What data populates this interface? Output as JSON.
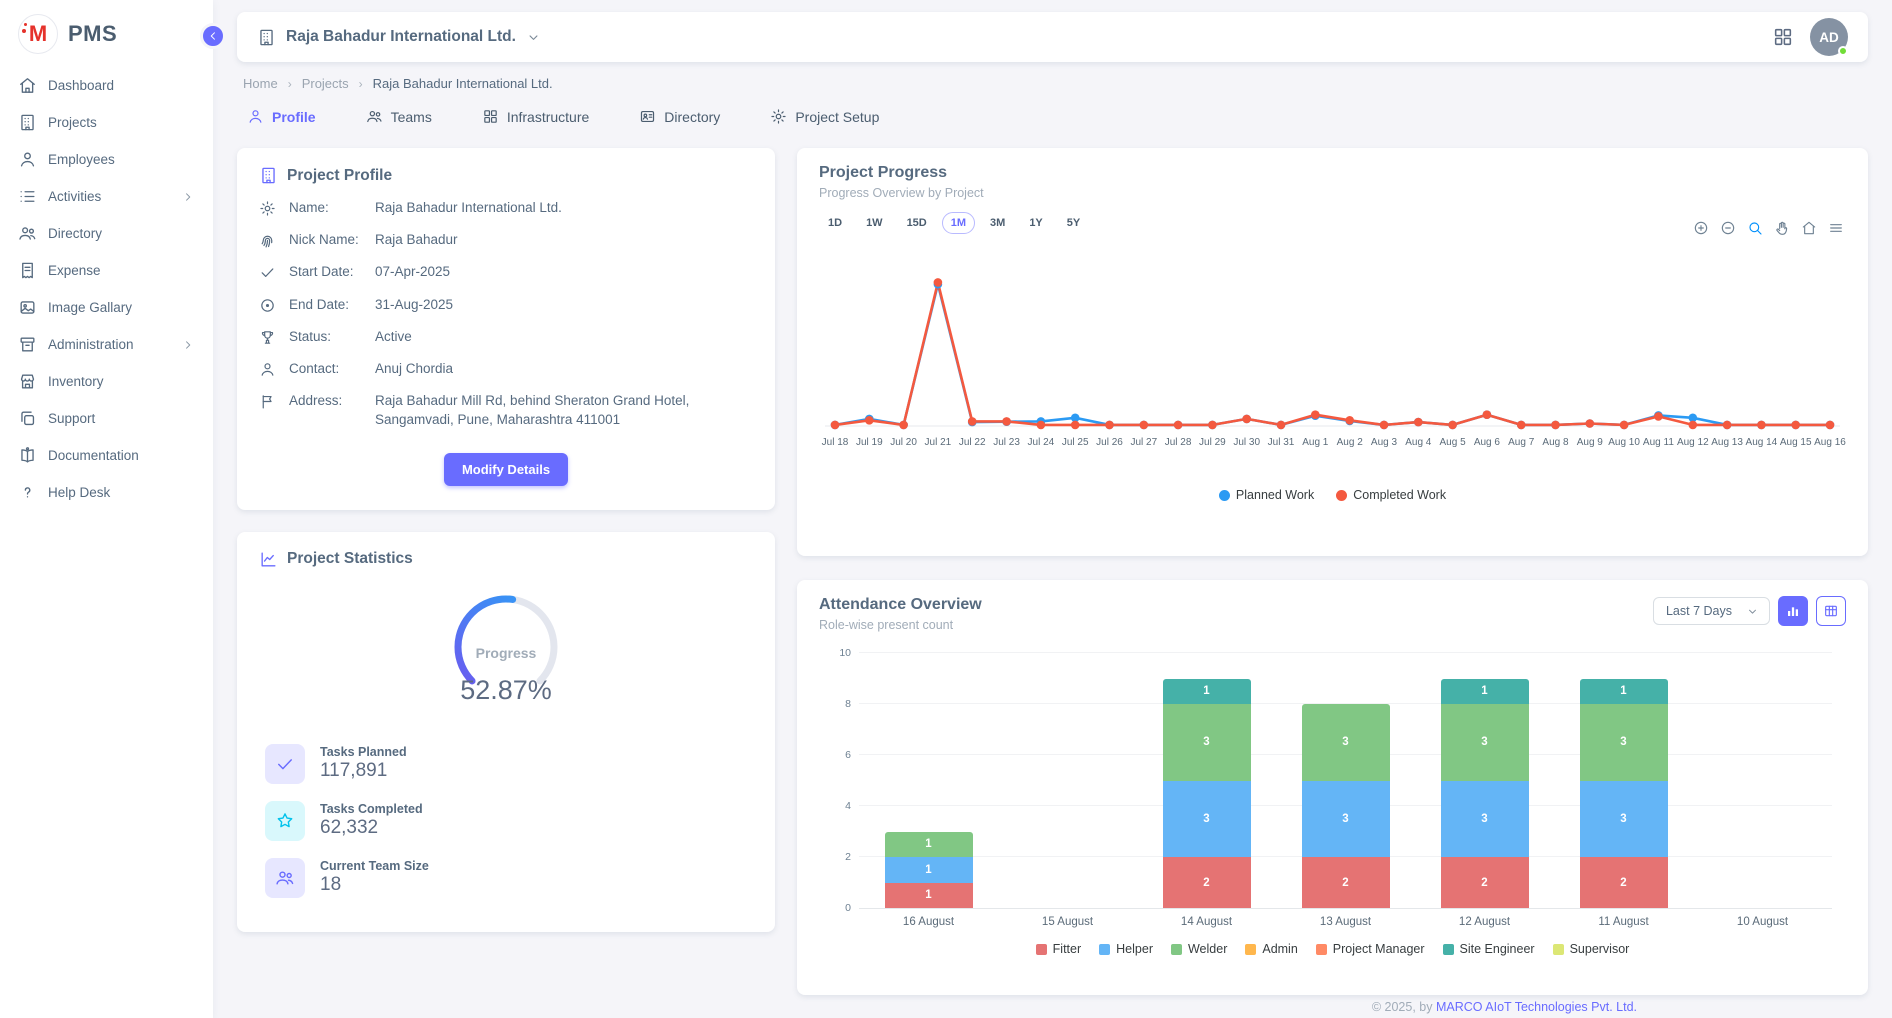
{
  "app": {
    "name": "PMS"
  },
  "sidebar": {
    "items": [
      {
        "label": "Dashboard",
        "icon": "home-icon",
        "has_children": false
      },
      {
        "label": "Projects",
        "icon": "building-icon",
        "has_children": false
      },
      {
        "label": "Employees",
        "icon": "person-icon",
        "has_children": false
      },
      {
        "label": "Activities",
        "icon": "list-icon",
        "has_children": true
      },
      {
        "label": "Directory",
        "icon": "people-icon",
        "has_children": false
      },
      {
        "label": "Expense",
        "icon": "receipt-icon",
        "has_children": false
      },
      {
        "label": "Image Gallary",
        "icon": "image-icon",
        "has_children": false
      },
      {
        "label": "Administration",
        "icon": "archive-icon",
        "has_children": true
      },
      {
        "label": "Inventory",
        "icon": "store-icon",
        "has_children": false
      },
      {
        "label": "Support",
        "icon": "copy-icon",
        "has_children": false
      },
      {
        "label": "Documentation",
        "icon": "book-icon",
        "has_children": false
      },
      {
        "label": "Help Desk",
        "icon": "help-icon",
        "has_children": false
      }
    ]
  },
  "header": {
    "project_title": "Raja Bahadur International Ltd.",
    "avatar_initials": "AD"
  },
  "breadcrumb": {
    "items": [
      "Home",
      "Projects",
      "Raja Bahadur International Ltd."
    ]
  },
  "tabs": [
    {
      "label": "Profile",
      "icon": "person-icon",
      "active": true
    },
    {
      "label": "Teams",
      "icon": "people-icon",
      "active": false
    },
    {
      "label": "Infrastructure",
      "icon": "grid-icon",
      "active": false
    },
    {
      "label": "Directory",
      "icon": "person-card-icon",
      "active": false
    },
    {
      "label": "Project Setup",
      "icon": "gear-icon",
      "active": false
    }
  ],
  "profile_card": {
    "title": "Project Profile",
    "fields": [
      {
        "icon": "gear-icon",
        "label": "Name:",
        "value": "Raja Bahadur International Ltd."
      },
      {
        "icon": "fingerprint-icon",
        "label": "Nick Name:",
        "value": "Raja Bahadur"
      },
      {
        "icon": "check-icon",
        "label": "Start Date:",
        "value": "07-Apr-2025"
      },
      {
        "icon": "circle-dot-icon",
        "label": "End Date:",
        "value": "31-Aug-2025"
      },
      {
        "icon": "trophy-icon",
        "label": "Status:",
        "value": "Active"
      },
      {
        "icon": "person-icon",
        "label": "Contact:",
        "value": "Anuj Chordia"
      },
      {
        "icon": "flag-icon",
        "label": "Address:",
        "value": "Raja Bahadur Mill Rd, behind Sheraton Grand Hotel, Sangamvadi, Pune, Maharashtra 411001"
      }
    ],
    "button_label": "Modify Details"
  },
  "stats_card": {
    "title": "Project Statistics",
    "gauge": {
      "label": "Progress",
      "value": "52.87%",
      "percent": 52.87,
      "color_start": "#6a5cf0",
      "color_end": "#2f9df6",
      "track_color": "#e3e6ee"
    },
    "stats": [
      {
        "icon": "check-icon",
        "color": "purple",
        "label": "Tasks Planned",
        "value": "117,891"
      },
      {
        "icon": "star-icon",
        "color": "cyan",
        "label": "Tasks Completed",
        "value": "62,332"
      },
      {
        "icon": "team-icon",
        "color": "purple",
        "label": "Current Team Size",
        "value": "18"
      }
    ]
  },
  "progress_card": {
    "title": "Project Progress",
    "subtitle": "Progress Overview by Project",
    "ranges": [
      "1D",
      "1W",
      "15D",
      "1M",
      "3M",
      "1Y",
      "5Y"
    ],
    "active_range": "1M",
    "toolbar": [
      {
        "icon": "zoom-in-icon"
      },
      {
        "icon": "zoom-out-icon"
      },
      {
        "icon": "selection-zoom-icon",
        "active": true
      },
      {
        "icon": "pan-icon"
      },
      {
        "icon": "reset-home-icon"
      },
      {
        "icon": "menu-icon"
      }
    ]
  },
  "attendance_card": {
    "title": "Attendance Overview",
    "subtitle": "Role-wise present count",
    "period_select": "Last 7 Days"
  },
  "footer": {
    "text": "© 2025, by ",
    "link": "MARCO AIoT Technologies Pvt. Ltd."
  },
  "colors": {
    "primary": "#696cff",
    "planned": "#2b9af3",
    "completed": "#f4593f",
    "success": "#71dd37"
  },
  "chart_data": [
    {
      "type": "line",
      "title": "Project Progress",
      "x": [
        "Jul 18",
        "Jul 19",
        "Jul 20",
        "Jul 21",
        "Jul 22",
        "Jul 23",
        "Jul 24",
        "Jul 25",
        "Jul 26",
        "Jul 27",
        "Jul 28",
        "Jul 29",
        "Jul 30",
        "Jul 31",
        "Aug 1",
        "Aug 2",
        "Aug 3",
        "Aug 4",
        "Aug 5",
        "Aug 6",
        "Aug 7",
        "Aug 8",
        "Aug 9",
        "Aug 10",
        "Aug 11",
        "Aug 12",
        "Aug 13",
        "Aug 14",
        "Aug 15",
        "Aug 16"
      ],
      "series": [
        {
          "name": "Planned Work",
          "color": "#2b9af3",
          "values": [
            0.3,
            2.0,
            0.3,
            40.0,
            1.1,
            1.2,
            1.3,
            2.3,
            0.3,
            0.3,
            0.3,
            0.3,
            2.0,
            0.3,
            2.9,
            1.4,
            0.3,
            1.1,
            0.3,
            3.2,
            0.3,
            0.3,
            0.7,
            0.3,
            3.0,
            2.3,
            0.3,
            0.3,
            0.3,
            0.3
          ]
        },
        {
          "name": "Completed Work",
          "color": "#f4593f",
          "values": [
            0.3,
            1.6,
            0.3,
            40.5,
            1.3,
            1.3,
            0.3,
            0.3,
            0.3,
            0.3,
            0.3,
            0.3,
            2.0,
            0.3,
            3.2,
            1.6,
            0.3,
            1.1,
            0.3,
            3.2,
            0.3,
            0.3,
            0.7,
            0.3,
            2.7,
            0.3,
            0.3,
            0.3,
            0.3,
            0.3
          ]
        }
      ],
      "ylim": [
        0,
        44
      ],
      "grid": false,
      "y_axis_hidden": true,
      "legend_position": "bottom"
    },
    {
      "type": "bar",
      "stacked": true,
      "title": "Attendance Overview",
      "categories": [
        "16 August",
        "15 August",
        "14 August",
        "13 August",
        "12 August",
        "11 August",
        "10 August"
      ],
      "series": [
        {
          "name": "Fitter",
          "color": "#e57373",
          "values": [
            1,
            0,
            2,
            2,
            2,
            2,
            0
          ]
        },
        {
          "name": "Helper",
          "color": "#64b5f6",
          "values": [
            1,
            0,
            3,
            3,
            3,
            3,
            0
          ]
        },
        {
          "name": "Welder",
          "color": "#81c784",
          "values": [
            1,
            0,
            3,
            3,
            3,
            3,
            0
          ]
        },
        {
          "name": "Admin",
          "color": "#ffb74d",
          "values": [
            0,
            0,
            0,
            0,
            0,
            0,
            0
          ]
        },
        {
          "name": "Project Manager",
          "color": "#ff8a65",
          "values": [
            0,
            0,
            0,
            0,
            0,
            0,
            0
          ]
        },
        {
          "name": "Site Engineer",
          "color": "#45b1a8",
          "values": [
            0,
            0,
            1,
            0,
            1,
            1,
            0
          ]
        },
        {
          "name": "Supervisor",
          "color": "#dce775",
          "values": [
            0,
            0,
            0,
            0,
            0,
            0,
            0
          ]
        }
      ],
      "ylim": [
        0,
        10
      ],
      "yticks": [
        0,
        2,
        4,
        6,
        8,
        10
      ],
      "grid": true,
      "legend_position": "bottom"
    }
  ]
}
